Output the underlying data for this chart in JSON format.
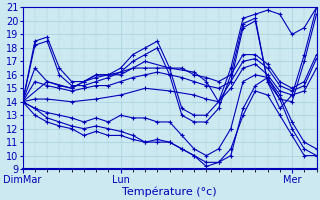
{
  "xlabel": "Température (°c)",
  "xlim": [
    0,
    96
  ],
  "ylim": [
    9,
    21
  ],
  "yticks": [
    9,
    10,
    11,
    12,
    13,
    14,
    15,
    16,
    17,
    18,
    19,
    20,
    21
  ],
  "xtick_positions": [
    0,
    32,
    88
  ],
  "xtick_labels": [
    "DimMar",
    "Lun",
    "Mer"
  ],
  "bg_color": "#cce8f0",
  "grid_color": "#a8d0dc",
  "line_color": "#0000bb",
  "lines": [
    [
      0,
      14.0,
      4,
      18.5,
      8,
      18.8,
      12,
      16.5,
      16,
      15.5,
      20,
      15.5,
      24,
      15.8,
      28,
      16.0,
      32,
      16.5,
      36,
      17.5,
      40,
      18.0,
      44,
      18.5,
      48,
      16.5,
      52,
      13.5,
      56,
      13.0,
      60,
      13.0,
      64,
      14.0,
      68,
      16.5,
      72,
      20.2,
      76,
      20.5,
      80,
      20.8,
      84,
      20.5,
      88,
      19.0,
      92,
      19.5,
      96,
      21.0
    ],
    [
      0,
      14.0,
      4,
      18.2,
      8,
      18.5,
      12,
      16.0,
      16,
      15.2,
      20,
      15.2,
      24,
      15.5,
      28,
      15.8,
      32,
      16.2,
      36,
      17.0,
      40,
      17.5,
      44,
      18.0,
      48,
      16.0,
      52,
      13.0,
      56,
      12.5,
      60,
      12.5,
      64,
      13.5,
      68,
      16.0,
      72,
      19.8,
      76,
      20.2,
      80,
      15.5,
      84,
      13.5,
      88,
      14.5,
      92,
      17.5,
      96,
      21.0
    ],
    [
      0,
      14.0,
      8,
      15.5,
      16,
      15.0,
      24,
      16.0,
      32,
      16.0,
      40,
      17.0,
      48,
      16.5,
      56,
      16.2,
      60,
      15.5,
      64,
      14.0,
      68,
      15.5,
      72,
      19.5,
      76,
      20.0,
      80,
      15.5,
      84,
      14.2,
      88,
      14.0,
      92,
      17.0,
      96,
      20.5
    ],
    [
      0,
      14.0,
      4,
      16.5,
      8,
      15.5,
      12,
      15.2,
      16,
      15.0,
      20,
      15.5,
      24,
      16.0,
      28,
      16.0,
      32,
      16.2,
      36,
      16.5,
      40,
      16.5,
      44,
      16.5,
      48,
      16.5,
      52,
      16.5,
      56,
      16.0,
      60,
      15.8,
      64,
      15.5,
      68,
      16.0,
      72,
      17.5,
      76,
      17.5,
      80,
      16.8,
      84,
      15.5,
      88,
      15.0,
      92,
      15.5,
      96,
      17.5
    ],
    [
      0,
      14.0,
      4,
      15.5,
      8,
      15.2,
      12,
      15.0,
      16,
      14.8,
      20,
      15.0,
      24,
      15.2,
      28,
      15.2,
      32,
      15.5,
      36,
      15.8,
      40,
      16.0,
      44,
      16.2,
      48,
      16.0,
      52,
      15.8,
      56,
      15.5,
      60,
      15.2,
      64,
      15.0,
      68,
      15.5,
      72,
      17.0,
      76,
      17.2,
      80,
      16.5,
      84,
      15.2,
      88,
      14.8,
      92,
      15.2,
      96,
      17.2
    ],
    [
      0,
      14.0,
      4,
      14.2,
      8,
      14.2,
      16,
      14.0,
      24,
      14.2,
      32,
      14.5,
      40,
      15.0,
      48,
      14.8,
      56,
      14.5,
      60,
      14.2,
      64,
      14.0,
      68,
      15.0,
      72,
      16.5,
      76,
      16.8,
      80,
      16.0,
      84,
      14.8,
      88,
      14.5,
      92,
      14.8,
      96,
      16.5
    ],
    [
      0,
      14.0,
      4,
      13.5,
      8,
      13.2,
      12,
      13.0,
      16,
      12.8,
      20,
      12.5,
      24,
      12.8,
      28,
      12.5,
      32,
      13.0,
      36,
      12.8,
      40,
      12.8,
      44,
      12.5,
      48,
      12.5,
      52,
      11.5,
      56,
      10.5,
      60,
      10.0,
      64,
      10.5,
      68,
      12.0,
      72,
      15.5,
      76,
      16.0,
      80,
      15.8,
      84,
      14.5,
      88,
      12.5,
      92,
      11.0,
      96,
      10.5
    ],
    [
      0,
      14.0,
      4,
      13.0,
      8,
      12.5,
      12,
      12.2,
      16,
      12.0,
      20,
      11.5,
      24,
      11.8,
      28,
      11.5,
      32,
      11.5,
      36,
      11.2,
      40,
      11.0,
      44,
      11.2,
      48,
      11.0,
      52,
      10.5,
      56,
      10.0,
      60,
      9.5,
      64,
      9.5,
      68,
      10.0,
      72,
      13.5,
      76,
      15.2,
      80,
      15.8,
      84,
      14.2,
      88,
      12.0,
      92,
      10.5,
      96,
      10.0
    ],
    [
      0,
      14.0,
      4,
      13.5,
      8,
      12.8,
      12,
      12.5,
      16,
      12.2,
      20,
      12.0,
      24,
      12.2,
      28,
      12.0,
      32,
      11.8,
      36,
      11.5,
      40,
      11.0,
      44,
      11.0,
      48,
      11.0,
      52,
      10.5,
      56,
      10.0,
      60,
      9.2,
      64,
      9.5,
      68,
      10.5,
      72,
      13.0,
      76,
      14.8,
      80,
      14.5,
      84,
      13.0,
      88,
      11.5,
      92,
      10.0,
      96,
      10.0
    ]
  ]
}
